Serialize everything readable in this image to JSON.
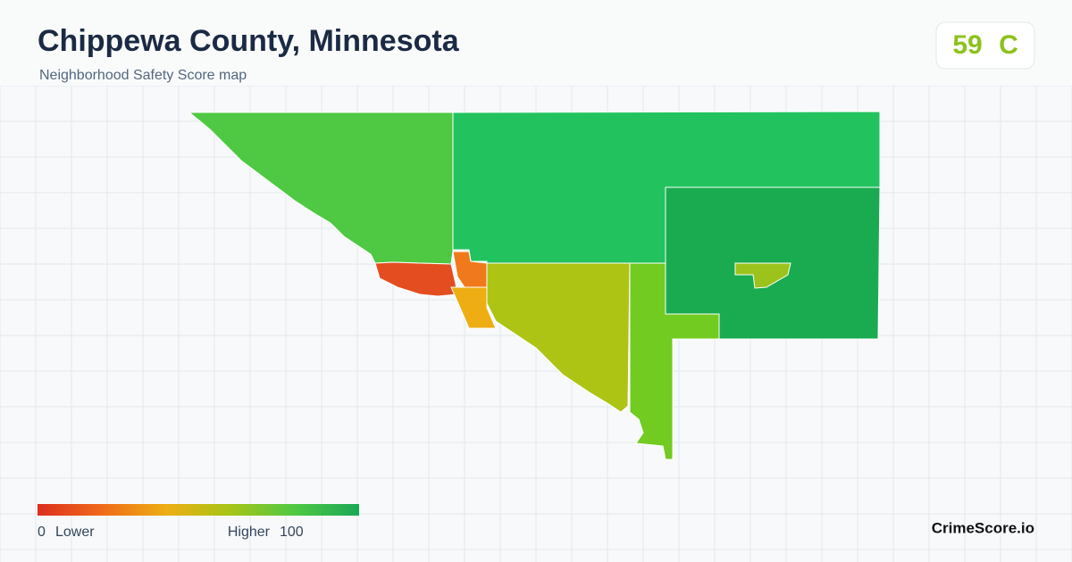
{
  "header": {
    "title": "Chippewa County, Minnesota",
    "subtitle": "Neighborhood Safety Score map"
  },
  "score": {
    "value": 59,
    "grade": "C"
  },
  "legend": {
    "min": 0,
    "low_label": "Lower",
    "high_label": "Higher",
    "max": 100
  },
  "brand": "CrimeScore.io"
}
